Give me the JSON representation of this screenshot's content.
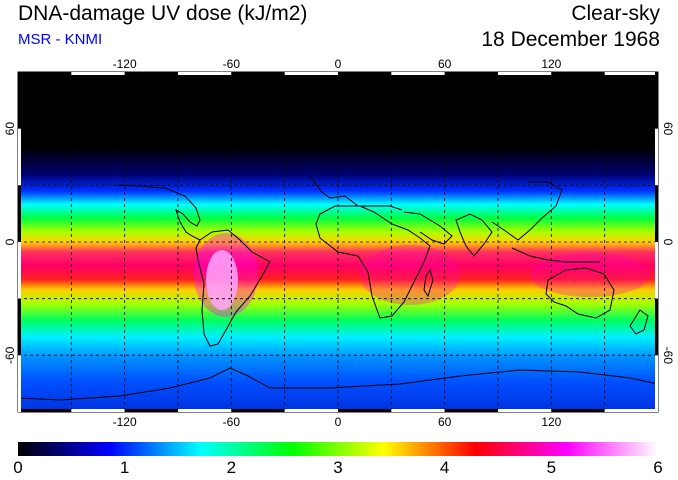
{
  "header": {
    "title": "DNA-damage UV dose (kJ/m2)",
    "subtitle": "MSR - KNMI",
    "sky_condition": "Clear-sky",
    "date": "18 December 1968"
  },
  "map": {
    "projection": "equirectangular",
    "lon_range": [
      -180,
      180
    ],
    "lat_range": [
      -90,
      90
    ],
    "lon_ticks": [
      -120,
      -60,
      0,
      60,
      120
    ],
    "lat_ticks": [
      60,
      0,
      -60
    ],
    "lon_tick_labels": [
      "-120",
      "-60",
      "0",
      "60",
      "120"
    ],
    "lat_tick_labels": [
      "60",
      "0",
      "-60"
    ],
    "gridlines": "dashed",
    "coastlines": true
  },
  "colorbar": {
    "min": 0,
    "max": 6,
    "labels": [
      "0",
      "1",
      "2",
      "3",
      "4",
      "5",
      "6"
    ],
    "colors": [
      "#000000",
      "#0000ff",
      "#00ffff",
      "#00ff00",
      "#ffff00",
      "#ff0000",
      "#ff00ff",
      "#ffffff"
    ]
  }
}
